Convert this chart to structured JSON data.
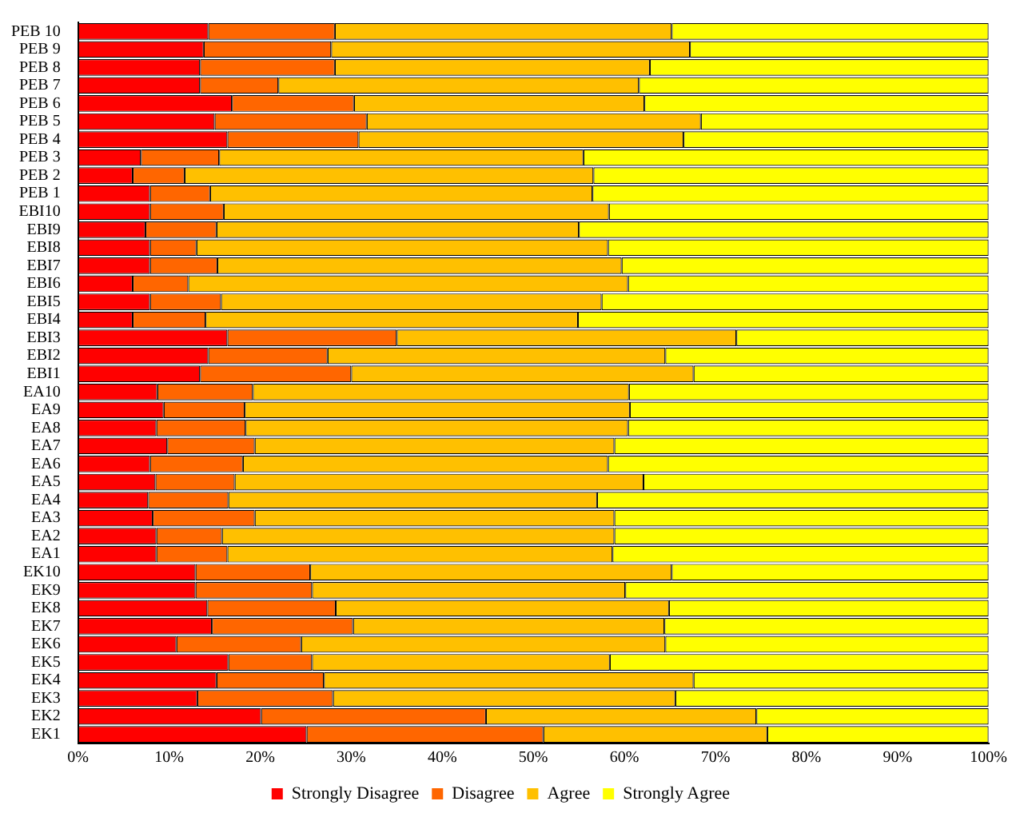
{
  "chart_data": {
    "type": "bar",
    "orientation": "horizontal",
    "stacked": true,
    "categories": [
      "PEB 10",
      "PEB 9",
      "PEB 8",
      "PEB 7",
      "PEB 6",
      "PEB 5",
      "PEB 4",
      "PEB 3",
      "PEB 2",
      "PEB 1",
      "EBI10",
      "EBI9",
      "EBI8",
      "EBI7",
      "EBI6",
      "EBI5",
      "EBI4",
      "EBI3",
      "EBI2",
      "EBI1",
      "EA10",
      "EA9",
      "EA8",
      "EA7",
      "EA6",
      "EA5",
      "EA4",
      "EA3",
      "EA2",
      "EA1",
      "EK10",
      "EK9",
      "EK8",
      "EK7",
      "EK6",
      "EK5",
      "EK4",
      "EK3",
      "EK2",
      "EK1"
    ],
    "series": [
      {
        "name": "Strongly Disagree",
        "color": "#ff0000",
        "values": [
          14.3,
          13.8,
          13.4,
          13.4,
          16.9,
          15.0,
          16.4,
          6.9,
          6.0,
          7.9,
          7.9,
          7.4,
          7.9,
          7.9,
          6.0,
          7.9,
          6.0,
          16.4,
          14.3,
          13.4,
          8.7,
          9.4,
          8.6,
          9.8,
          7.9,
          8.5,
          7.7,
          8.2,
          8.6,
          8.6,
          12.9,
          12.9,
          14.2,
          14.7,
          10.8,
          16.5,
          15.2,
          13.1,
          20.1,
          25.1
        ]
      },
      {
        "name": "Disagree",
        "color": "#ff6600",
        "values": [
          13.9,
          14.0,
          14.8,
          8.6,
          13.4,
          16.7,
          14.4,
          8.6,
          5.7,
          6.6,
          8.1,
          7.8,
          5.1,
          7.4,
          6.1,
          7.8,
          8.0,
          18.6,
          13.1,
          16.6,
          10.5,
          8.9,
          9.8,
          9.6,
          10.2,
          8.7,
          8.8,
          11.2,
          7.2,
          7.8,
          12.6,
          12.8,
          14.1,
          15.5,
          13.7,
          9.2,
          11.8,
          14.9,
          24.7,
          26.0
        ]
      },
      {
        "name": "Agree",
        "color": "#ffc000",
        "values": [
          37.0,
          39.4,
          34.6,
          39.6,
          31.9,
          36.7,
          35.7,
          40.0,
          44.9,
          42.0,
          42.3,
          39.8,
          45.2,
          44.4,
          48.3,
          41.8,
          40.9,
          37.3,
          37.1,
          37.6,
          41.3,
          42.3,
          42.0,
          39.5,
          40.1,
          44.9,
          40.5,
          39.5,
          43.1,
          42.3,
          39.7,
          34.4,
          36.6,
          34.2,
          40.0,
          32.7,
          40.6,
          37.6,
          29.7,
          24.6
        ]
      },
      {
        "name": "Strongly Agree",
        "color": "#ffff00",
        "values": [
          34.8,
          32.8,
          37.2,
          38.4,
          37.8,
          31.6,
          33.5,
          44.5,
          43.4,
          43.5,
          41.7,
          45.0,
          41.8,
          40.3,
          39.6,
          42.5,
          45.1,
          27.7,
          35.5,
          32.4,
          39.5,
          39.4,
          39.6,
          41.1,
          41.8,
          37.9,
          43.0,
          41.1,
          41.1,
          41.3,
          34.8,
          39.9,
          35.1,
          35.6,
          35.5,
          41.6,
          32.4,
          34.4,
          25.5,
          24.3
        ]
      }
    ],
    "xlim": [
      0,
      100
    ],
    "xticks": [
      {
        "value": 0,
        "label": "0%"
      },
      {
        "value": 10,
        "label": "10%"
      },
      {
        "value": 20,
        "label": "20%"
      },
      {
        "value": 30,
        "label": "30%"
      },
      {
        "value": 40,
        "label": "40%"
      },
      {
        "value": 50,
        "label": "50%"
      },
      {
        "value": 60,
        "label": "60%"
      },
      {
        "value": 70,
        "label": "70%"
      },
      {
        "value": 80,
        "label": "80%"
      },
      {
        "value": 90,
        "label": "90%"
      },
      {
        "value": 100,
        "label": "100%"
      }
    ],
    "grid": false,
    "legend": "bottom"
  }
}
